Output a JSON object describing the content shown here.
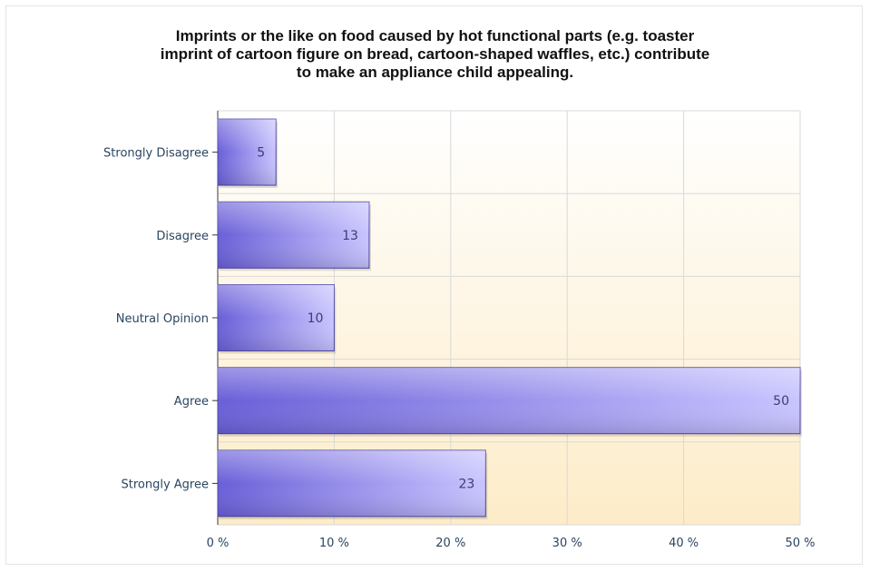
{
  "chart_data": {
    "type": "bar",
    "orientation": "horizontal",
    "title_lines": [
      "Imprints or the like on food caused by hot functional parts (e.g. toaster",
      "imprint of cartoon figure on bread, cartoon-shaped waffles, etc.) contribute",
      "to make an appliance child appealing."
    ],
    "categories": [
      "Strongly Disagree",
      "Disagree",
      "Neutral Opinion",
      "Agree",
      "Strongly Agree"
    ],
    "values": [
      5,
      13,
      10,
      50,
      23
    ],
    "xlim": [
      0,
      50
    ],
    "xticks": [
      0,
      10,
      20,
      30,
      40,
      50
    ],
    "tick_labels": [
      "0 %",
      "10 %",
      "20 %",
      "30 %",
      "40 %",
      "50 %"
    ],
    "xlabel": "",
    "ylabel": "",
    "grid": true,
    "legend": "none",
    "colors": {
      "bar_dark": "#6a5fd8",
      "bar_light": "#c8c4ff",
      "bar_edge": "#4d46a8",
      "plot_bg_top": "#ffffff",
      "plot_bg_bottom": "#fdecc8",
      "grid": "#d9d9d9",
      "axis": "#3a3a3a"
    }
  }
}
